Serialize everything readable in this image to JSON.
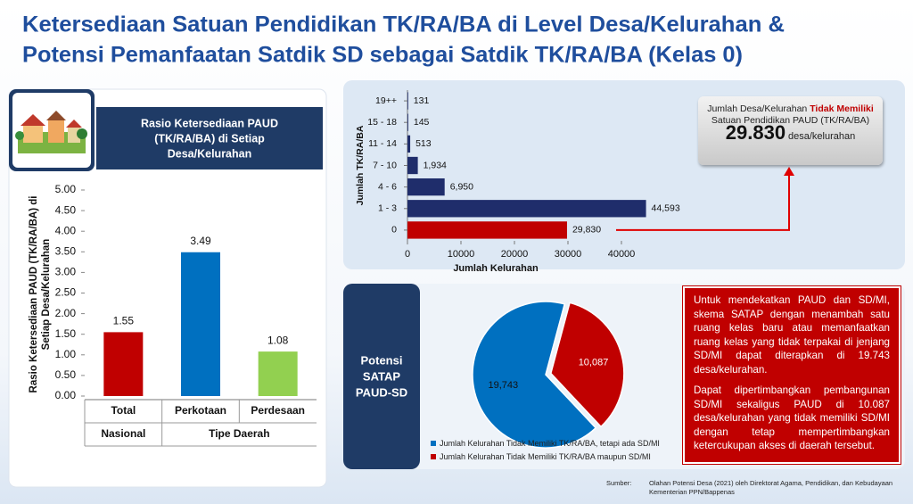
{
  "title": [
    "Ketersediaan Satuan Pendidikan TK/RA/BA di Level Desa/Kelurahan &",
    "Potensi Pemanfaatan Satdik SD sebagai Satdik TK/RA/BA (Kelas 0)"
  ],
  "chart_data": [
    {
      "type": "bar",
      "title": [
        "Rasio Ketersediaan PAUD",
        "(TK/RA/BA) di Setiap",
        "Desa/Kelurahan"
      ],
      "ylabel": [
        "Rasio Ketersediaan PAUD (TK/RA/BA) di",
        "Setiap Desa/Kelurahan"
      ],
      "categories": [
        "Total",
        "Perkotaan",
        "Perdesaan"
      ],
      "groups": [
        "Nasional",
        "Tipe Daerah"
      ],
      "values": [
        1.55,
        3.49,
        1.08
      ],
      "colors": [
        "#c00000",
        "#0070c0",
        "#92d050"
      ],
      "ylim": [
        0,
        5
      ],
      "yticks": [
        {
          "value": 0,
          "label": "0.00"
        },
        {
          "value": 0.5,
          "label": "0.50"
        },
        {
          "value": 1,
          "label": "1.00"
        },
        {
          "value": 1.5,
          "label": "1.50"
        },
        {
          "value": 2,
          "label": "2.00"
        },
        {
          "value": 2.5,
          "label": "2.50"
        },
        {
          "value": 3,
          "label": "3.00"
        },
        {
          "value": 3.5,
          "label": "3.50"
        },
        {
          "value": 4,
          "label": "4.00"
        },
        {
          "value": 4.5,
          "label": "4.50"
        },
        {
          "value": 5,
          "label": "5.00"
        }
      ]
    },
    {
      "type": "hbar",
      "xlabel": "Jumlah Kelurahan",
      "ylabel": "Jumlah TK/RA/BA",
      "categories": [
        "19++",
        "15 - 18",
        "11 - 14",
        "7 - 10",
        "4 - 6",
        "1 - 3",
        "0"
      ],
      "values": [
        131,
        145,
        513,
        1934,
        6950,
        44593,
        29830
      ],
      "value_labels": [
        "131",
        "145",
        "513",
        "1,934",
        "6,950",
        "44,593",
        "29,830"
      ],
      "colors": [
        "#1f2d6b",
        "#1f2d6b",
        "#1f2d6b",
        "#1f2d6b",
        "#1f2d6b",
        "#1f2d6b",
        "#c00000"
      ],
      "xlim": [
        0,
        48000
      ],
      "xticks": [
        0,
        10000,
        20000,
        30000,
        40000
      ]
    },
    {
      "type": "pie",
      "title": [
        "Potensi",
        "SATAP",
        "PAUD-SD"
      ],
      "labels": [
        "Jumlah Kelurahan Tidak Memiliki TK/RA/BA, tetapi ada SD/MI",
        "Jumlah Kelurahan Tidak Memiliki TK/RA/BA maupun SD/MI"
      ],
      "values": [
        19743,
        10087
      ],
      "value_labels": [
        "19,743",
        "10,087"
      ],
      "colors": [
        "#0070c0",
        "#c00000"
      ]
    }
  ],
  "callout": {
    "text_before": "Jumlah Desa/Kelurahan",
    "highlight": "Tidak Memiliki",
    "text_after": "Satuan Pendidikan PAUD (TK/RA/BA)",
    "value": "29.830",
    "unit": "desa/kelurahan"
  },
  "note": [
    "Untuk mendekatkan PAUD dan SD/MI, skema SATAP dengan menambah satu ruang kelas baru atau memanfaatkan ruang kelas yang tidak terpakai di jenjang SD/MI dapat diterapkan di 19.743 desa/kelurahan.",
    "Dapat dipertimbangkan pembangunan SD/MI sekaligus PAUD di 10.087 desa/kelurahan yang tidak memiliki SD/MI dengan tetap mempertimbangkan ketercukupan akses di daerah tersebut."
  ],
  "source": {
    "label": "Sumber:",
    "text": "Olahan Potensi Desa (2021) oleh Direktorat Agama, Pendidikan, dan Kebudayaan Kementerian PPN/Bappenas"
  }
}
